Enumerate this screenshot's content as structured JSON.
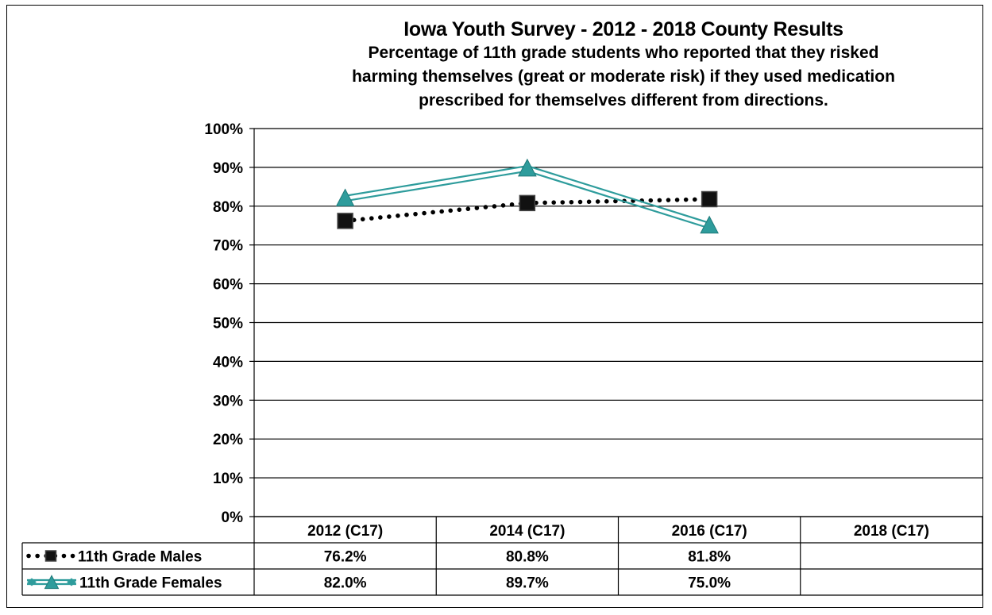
{
  "chart_data": {
    "type": "line",
    "title": "Iowa Youth Survey - 2012 - 2018 County Results",
    "subtitle_lines": [
      "Percentage of 11th grade students who reported that they risked",
      "harming themselves (great or moderate risk) if they used medication",
      "prescribed for themselves different from directions."
    ],
    "categories": [
      "2012 (C17)",
      "2014 (C17)",
      "2016 (C17)",
      "2018 (C17)"
    ],
    "y_ticks": [
      "0%",
      "10%",
      "20%",
      "30%",
      "40%",
      "50%",
      "60%",
      "70%",
      "80%",
      "90%",
      "100%"
    ],
    "ylim": [
      0,
      100
    ],
    "grid": true,
    "legend_placement": "data-table-below",
    "series": [
      {
        "name": "11th Grade Males",
        "values": [
          76.2,
          80.8,
          81.8,
          null
        ],
        "labels": [
          "76.2%",
          "80.8%",
          "81.8%",
          ""
        ],
        "color": "#000000",
        "line_style": "dotted",
        "marker": "square"
      },
      {
        "name": "11th Grade Females",
        "values": [
          82.0,
          89.7,
          75.0,
          null
        ],
        "labels": [
          "82.0%",
          "89.7%",
          "75.0%",
          ""
        ],
        "color": "#2E9C9C",
        "line_style": "double",
        "marker": "triangle"
      }
    ]
  }
}
